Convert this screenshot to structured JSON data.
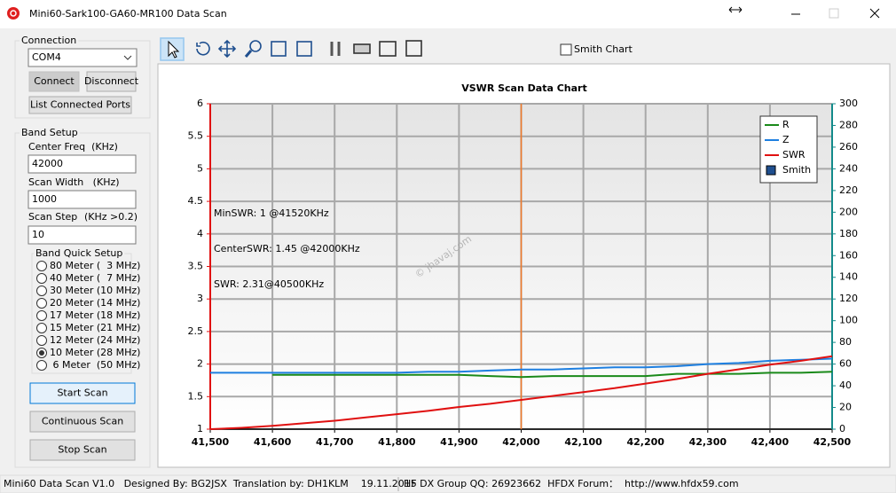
{
  "window": {
    "title": "Mini60-Sark100-GA60-MR100 Data Scan"
  },
  "connection": {
    "label": "Connection",
    "port": "COM4",
    "connect": "Connect",
    "connect_enabled": false,
    "disconnect": "Disconnect",
    "list_ports": "List Connected Ports"
  },
  "band_setup": {
    "label": "Band Setup",
    "center_freq_label": "Center Freq  (KHz)",
    "center_freq": "42000",
    "scan_width_label": "Scan Width   (KHz)",
    "scan_width": "1000",
    "scan_step_label": "Scan Step",
    "scan_step_hint": "(KHz >0.2)",
    "scan_step": "10",
    "quick_setup_label": "Band Quick Setup",
    "bands": [
      "80 Meter (  3 MHz)",
      "40 Meter (  7 MHz)",
      "30 Meter (10 MHz)",
      "20 Meter (14 MHz)",
      "17 Meter (18 MHz)",
      "15 Meter (21 MHz)",
      "12 Meter (24 MHz)",
      "10 Meter (28 MHz)",
      " 6 Meter  (50 MHz)"
    ],
    "selected_band": 7
  },
  "scan_buttons": [
    "Start Scan",
    "Continuous Scan",
    "Stop Scan"
  ],
  "toolbar": {
    "smith_chart": "Smith Chart",
    "smith_checked": false
  },
  "chart_data": {
    "type": "line",
    "title": "VSWR Scan Data Chart",
    "x": [
      41500,
      41550,
      41600,
      41650,
      41700,
      41750,
      41800,
      41850,
      41900,
      41950,
      42000,
      42050,
      42100,
      42150,
      42200,
      42250,
      42300,
      42350,
      42400,
      42450,
      42500
    ],
    "series": [
      {
        "name": "R",
        "color": "#1a8a1a",
        "axis": "y2",
        "values": [
          null,
          null,
          50,
          50,
          50,
          50,
          50,
          50,
          50,
          49,
          48,
          49,
          49,
          49,
          49,
          51,
          51,
          51,
          52,
          52,
          53
        ]
      },
      {
        "name": "Z",
        "color": "#1e7fe0",
        "axis": "y2",
        "values": [
          52,
          52,
          52,
          52,
          52,
          52,
          52,
          53,
          53,
          54,
          55,
          55,
          56,
          57,
          57,
          58,
          60,
          61,
          63,
          64,
          65
        ]
      },
      {
        "name": "SWR",
        "color": "#e01010",
        "values": [
          1.0,
          1.02,
          1.05,
          1.09,
          1.13,
          1.18,
          1.23,
          1.28,
          1.34,
          1.39,
          1.45,
          1.51,
          1.57,
          1.63,
          1.7,
          1.77,
          1.85,
          1.92,
          1.99,
          2.05,
          2.12
        ]
      }
    ],
    "legend_extra": {
      "name": "Smith",
      "color": "#1f4f8f"
    },
    "center_line": {
      "x": 42000,
      "color": "#f07828"
    },
    "xlim": [
      41500,
      42500
    ],
    "xticks": [
      {
        "value": 41500,
        "label": "41,500"
      },
      {
        "value": 41600,
        "label": "41,600"
      },
      {
        "value": 41700,
        "label": "41,700"
      },
      {
        "value": 41800,
        "label": "41,800"
      },
      {
        "value": 41900,
        "label": "41,900"
      },
      {
        "value": 42000,
        "label": "42,000"
      },
      {
        "value": 42100,
        "label": "42,100"
      },
      {
        "value": 42200,
        "label": "42,200"
      },
      {
        "value": 42300,
        "label": "42,300"
      },
      {
        "value": 42400,
        "label": "42,400"
      },
      {
        "value": 42500,
        "label": "42,500"
      }
    ],
    "ylim": [
      1,
      6
    ],
    "yticks": [
      1,
      1.5,
      2,
      2.5,
      3,
      3.5,
      4,
      4.5,
      5,
      5.5,
      6
    ],
    "y2lim": [
      0,
      300
    ],
    "y2ticks": [
      0,
      20,
      40,
      60,
      80,
      100,
      120,
      140,
      160,
      180,
      200,
      220,
      240,
      260,
      280,
      300
    ],
    "grid": true,
    "annotations": [
      {
        "text": "MinSWR: 1 @41520KHz",
        "color": "#e01010"
      },
      {
        "text": "CenterSWR: 1.45 @42000KHz",
        "color": "#1a1a80"
      },
      {
        "text": "SWR: 2.31@40500KHz",
        "color": "#000000"
      }
    ],
    "watermark": "© jhavaj.com"
  },
  "status_bar": [
    "Mini60 Data Scan V1.0   Designed By: BG2JSX  Translation by: DH1KLM    19.11.2015",
    "HF DX Group QQ: 26923662  HFDX Forum：  http://www.hfdx59.com"
  ]
}
